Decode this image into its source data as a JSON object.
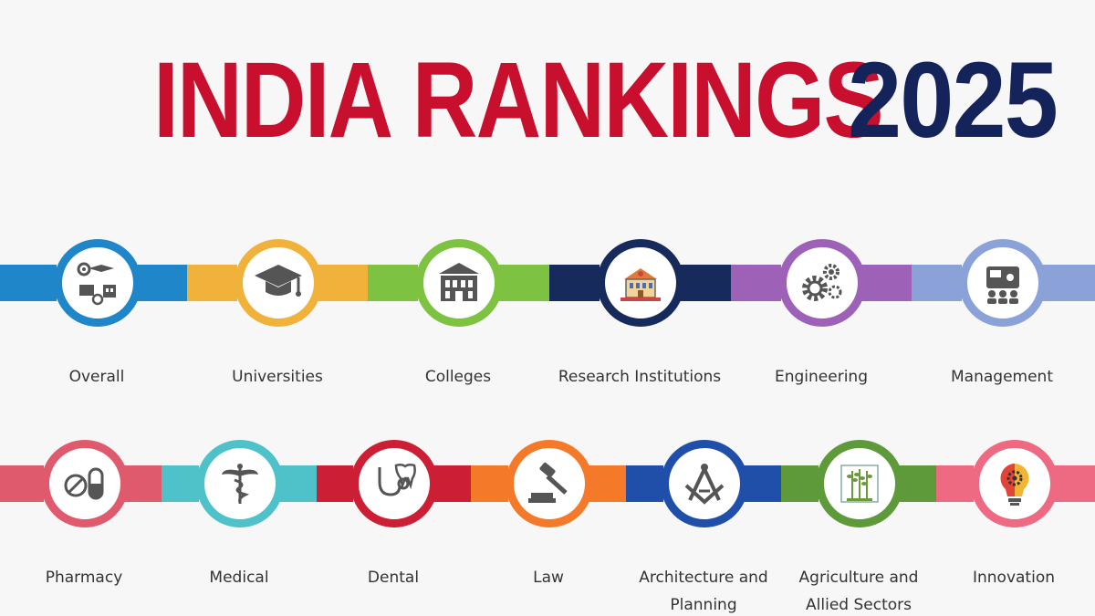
{
  "title": {
    "main": "INDIA RANKINGS",
    "year": "2025",
    "main_color": "#c8102e",
    "year_color": "#14235a"
  },
  "row1": [
    {
      "label": "Overall",
      "color": "#1f86c9",
      "icon": "overall-icon"
    },
    {
      "label": "Universities",
      "color": "#f0b23a",
      "icon": "graduation-cap-icon"
    },
    {
      "label": "Colleges",
      "color": "#7ec242",
      "icon": "college-building-icon"
    },
    {
      "label": "Research Institutions",
      "color": "#162a5c",
      "icon": "research-building-icon"
    },
    {
      "label": "Engineering",
      "color": "#9d62b8",
      "icon": "gears-icon"
    },
    {
      "label": "Management",
      "color": "#8aa2d8",
      "icon": "presentation-icon"
    }
  ],
  "row2": [
    {
      "label": "Pharmacy",
      "color": "#e05a6e",
      "icon": "pill-icon"
    },
    {
      "label": "Medical",
      "color": "#4ec2c8",
      "icon": "caduceus-icon"
    },
    {
      "label": "Dental",
      "color": "#cc1f35",
      "icon": "tooth-stethoscope-icon"
    },
    {
      "label": "Law",
      "color": "#f47a2a",
      "icon": "gavel-icon"
    },
    {
      "label": "Architecture and",
      "label2": "Planning",
      "color": "#1f4fa8",
      "icon": "compass-square-icon"
    },
    {
      "label": "Agriculture and",
      "label2": "Allied Sectors",
      "color": "#5e9a3a",
      "icon": "wheat-icon"
    },
    {
      "label": "Innovation",
      "color": "#ee6a82",
      "icon": "bulb-gear-icon"
    }
  ]
}
